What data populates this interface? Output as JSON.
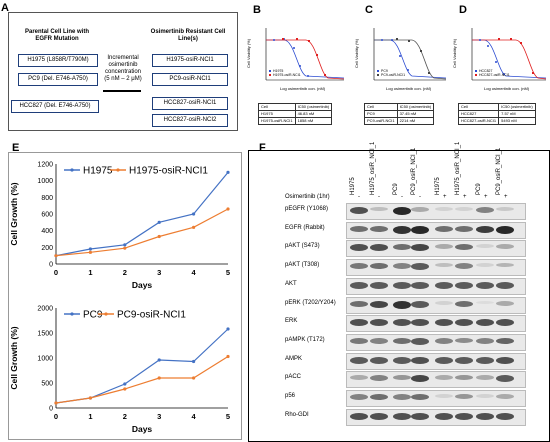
{
  "panel_a": {
    "letter": "A",
    "parental_header": "Parental Cell Line with EGFR Mutation",
    "resistant_header": "Osimertinib Resistant Cell Line(s)",
    "middle_text": [
      "Incremental",
      "osimertinib",
      "concentration",
      "(5 nM – 2 μM)"
    ],
    "parental": [
      "H1975 (L858R/T790M)",
      "PC9 (Del. E746-A750)",
      "HCC827 (Del. E746-A750)"
    ],
    "resistant": [
      "H1975-osiR-NCI1",
      "PC9-osiR-NCI1",
      "HCC827-osiR-NCI1",
      "HCC827-osiR-NCI2"
    ]
  },
  "panel_b": {
    "letter": "B",
    "ylabel": "Cell Viability (%)",
    "xlabel": "Log osimertinib con. (nM)",
    "legend": [
      "H1975",
      "H1975-osiR-NCI1"
    ],
    "table": [
      [
        "Cell",
        "IC50 (osimertinib)"
      ],
      [
        "H1975",
        "46.83 nM"
      ],
      [
        "H1975-osiR-NCI1",
        "1858 nM"
      ]
    ]
  },
  "panel_c": {
    "letter": "C",
    "ylabel": "Cell Viability (%)",
    "xlabel": "Log osimertinib con. (nM)",
    "legend": [
      "PC9",
      "PC9-osiR-NCI1"
    ],
    "table": [
      [
        "Cell",
        "IC50 (osimertinib)"
      ],
      [
        "PC9",
        "37.45 nM"
      ],
      [
        "PC9-osiR-NCI1",
        "2214 nM"
      ]
    ]
  },
  "panel_d": {
    "letter": "D",
    "ylabel": "Cell Viability (%)",
    "xlabel": "Log osimertinib con. (nM)",
    "legend": [
      "HCC827",
      "HCC827-osiR-NCI1"
    ],
    "table": [
      [
        "Cell",
        "IC50 (osimertinib)"
      ],
      [
        "HCC827",
        "7.57 nM"
      ],
      [
        "HCC827-osiR-NCI1",
        "5493 nM"
      ]
    ]
  },
  "panel_e": {
    "letter": "E",
    "colors": {
      "parental": "#4472c4",
      "resistant": "#ed7d31"
    }
  },
  "chart_data": [
    {
      "type": "line",
      "xlabel": "Days",
      "ylabel": "Cell Growth (%)",
      "x": [
        0,
        1,
        2,
        3,
        4,
        5
      ],
      "ylim": [
        0,
        1200
      ],
      "yticks": [
        0,
        200,
        400,
        600,
        800,
        1000,
        1200
      ],
      "series": [
        {
          "name": "H1975",
          "values": [
            100,
            180,
            230,
            500,
            600,
            1100
          ]
        },
        {
          "name": "H1975-osiR-NCI1",
          "values": [
            100,
            140,
            190,
            330,
            440,
            660
          ]
        }
      ]
    },
    {
      "type": "line",
      "xlabel": "Days",
      "ylabel": "Cell Growth (%)",
      "x": [
        0,
        1,
        2,
        3,
        4,
        5
      ],
      "ylim": [
        0,
        2000
      ],
      "yticks": [
        0,
        500,
        1000,
        1500,
        2000
      ],
      "series": [
        {
          "name": "PC9",
          "values": [
            100,
            200,
            480,
            960,
            930,
            1580
          ]
        },
        {
          "name": "PC9-osiR-NCI1",
          "values": [
            100,
            200,
            380,
            600,
            600,
            1030
          ]
        }
      ]
    }
  ],
  "panel_f": {
    "letter": "F",
    "lanes": [
      "H1975",
      "H1975_osiR_NCI_1",
      "PC9",
      "PC9_osiR_NCI_1",
      "H1975",
      "H1975_osiR_NCI_1",
      "PC9",
      "PC9_osiR_NCI_1"
    ],
    "treatment_label": "Osimertinib (1hr)",
    "treatment": [
      "-",
      "-",
      "-",
      "-",
      "+",
      "+",
      "+",
      "+"
    ],
    "bands": [
      "pEGFR (Y1068)",
      "EGFR (Rabbit)",
      "pAKT (S473)",
      "pAKT (T308)",
      "AKT",
      "pERK (T202/Y204)",
      "ERK",
      "pAMPK (T172)",
      "AMPK",
      "pACC",
      "p56",
      "Rho-GDI"
    ],
    "intensities": [
      [
        0.75,
        0.2,
        0.95,
        0.3,
        0.1,
        0.1,
        0.5,
        0.15
      ],
      [
        0.6,
        0.6,
        0.9,
        0.95,
        0.6,
        0.6,
        0.85,
        0.95
      ],
      [
        0.75,
        0.75,
        0.6,
        0.8,
        0.3,
        0.6,
        0.1,
        0.3
      ],
      [
        0.55,
        0.6,
        0.5,
        0.7,
        0.2,
        0.5,
        0.1,
        0.25
      ],
      [
        0.7,
        0.7,
        0.7,
        0.7,
        0.7,
        0.7,
        0.7,
        0.7
      ],
      [
        0.6,
        0.8,
        0.9,
        0.7,
        0.1,
        0.6,
        0.05,
        0.3
      ],
      [
        0.75,
        0.75,
        0.75,
        0.75,
        0.75,
        0.75,
        0.75,
        0.75
      ],
      [
        0.55,
        0.5,
        0.6,
        0.7,
        0.5,
        0.45,
        0.5,
        0.65
      ],
      [
        0.7,
        0.7,
        0.7,
        0.75,
        0.7,
        0.7,
        0.7,
        0.75
      ],
      [
        0.3,
        0.5,
        0.4,
        0.8,
        0.3,
        0.4,
        0.3,
        0.7
      ],
      [
        0.5,
        0.6,
        0.5,
        0.6,
        0.1,
        0.4,
        0.1,
        0.3
      ],
      [
        0.75,
        0.75,
        0.75,
        0.75,
        0.75,
        0.75,
        0.75,
        0.75
      ]
    ]
  }
}
